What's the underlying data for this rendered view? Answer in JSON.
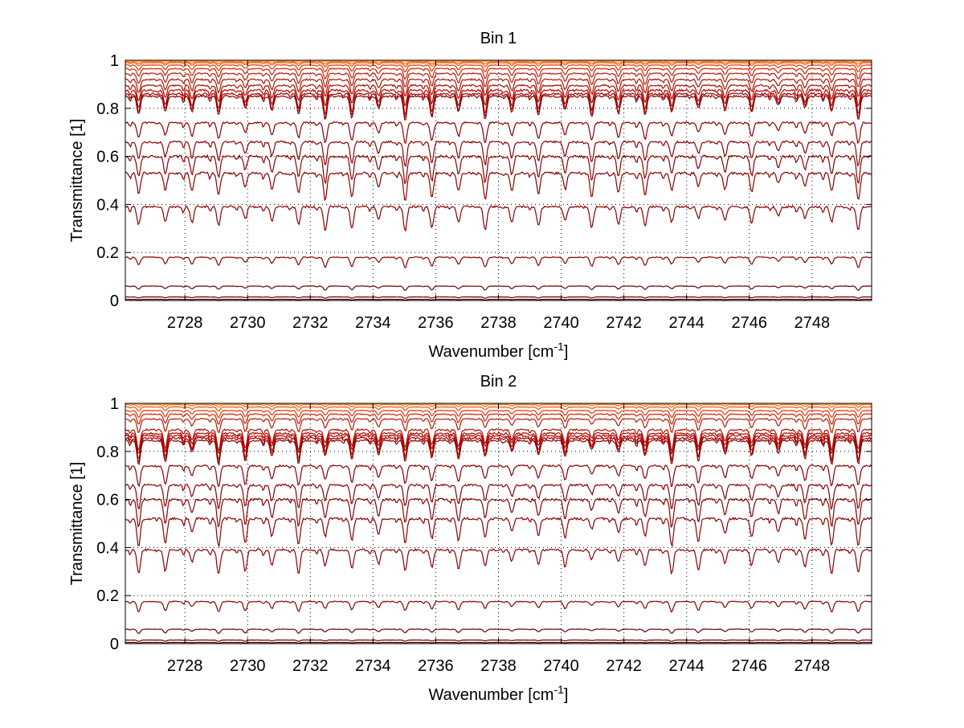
{
  "colors": {
    "background": "#ffffff",
    "grid": "#000000",
    "curve_dark": "#7a0000",
    "curve_mid": "#b01010",
    "curve_light": "#ff8c00"
  },
  "chart_data": [
    {
      "type": "line",
      "title": "Bin 1",
      "xlabel": "Wavenumber [cm",
      "xlabel_sup": "-1",
      "xlabel_close": "]",
      "ylabel": "Transmittance [1]",
      "xlim": [
        2726.1,
        2749.9
      ],
      "ylim": [
        0,
        1
      ],
      "xticks": [
        2728,
        2730,
        2732,
        2734,
        2736,
        2738,
        2740,
        2742,
        2744,
        2746,
        2748
      ],
      "yticks": [
        0,
        0.2,
        0.4,
        0.6,
        0.8,
        1
      ],
      "ytick_labels": [
        "0",
        "0.2",
        "0.4",
        "0.6",
        "0.8",
        "1"
      ],
      "grid": "dotted",
      "line_spacing_cm1": 0.85,
      "series": [
        {
          "base": 1.0,
          "depth": 0.004,
          "color": "#ff8c00"
        },
        {
          "base": 0.995,
          "depth": 0.008,
          "color": "#ff6a00"
        },
        {
          "base": 0.99,
          "depth": 0.012,
          "color": "#ff4a00"
        },
        {
          "base": 0.98,
          "depth": 0.02,
          "color": "#e83000"
        },
        {
          "base": 0.965,
          "depth": 0.03,
          "color": "#d02000"
        },
        {
          "base": 0.945,
          "depth": 0.04,
          "color": "#c01800"
        },
        {
          "base": 0.92,
          "depth": 0.05,
          "color": "#b01000"
        },
        {
          "base": 0.895,
          "depth": 0.06,
          "color": "#a80c00"
        },
        {
          "base": 0.875,
          "depth": 0.07,
          "color": "#c00000"
        },
        {
          "base": 0.86,
          "depth": 0.07,
          "color": "#a00000"
        },
        {
          "base": 0.85,
          "depth": 0.07,
          "color": "#900000"
        },
        {
          "base": 0.74,
          "depth": 0.06,
          "color": "#8b0000"
        },
        {
          "base": 0.66,
          "depth": 0.07,
          "color": "#8b0000"
        },
        {
          "base": 0.6,
          "depth": 0.08,
          "color": "#8b0000"
        },
        {
          "base": 0.53,
          "depth": 0.08,
          "color": "#8b0000"
        },
        {
          "base": 0.39,
          "depth": 0.07,
          "color": "#8b0000"
        },
        {
          "base": 0.18,
          "depth": 0.03,
          "color": "#8b0000"
        },
        {
          "base": 0.06,
          "depth": 0.012,
          "color": "#6b0000"
        },
        {
          "base": 0.015,
          "depth": 0.004,
          "color": "#6b0000"
        },
        {
          "base": 0.005,
          "depth": 0.002,
          "color": "#5a0000"
        }
      ]
    },
    {
      "type": "line",
      "title": "Bin 2",
      "xlabel": "Wavenumber [cm",
      "xlabel_sup": "-1",
      "xlabel_close": "]",
      "ylabel": "Transmittance [1]",
      "xlim": [
        2726.1,
        2749.9
      ],
      "ylim": [
        0,
        1
      ],
      "xticks": [
        2728,
        2730,
        2732,
        2734,
        2736,
        2738,
        2740,
        2742,
        2744,
        2746,
        2748
      ],
      "yticks": [
        0,
        0.2,
        0.4,
        0.6,
        0.8,
        1
      ],
      "ytick_labels": [
        "0",
        "0.2",
        "0.4",
        "0.6",
        "0.8",
        "1"
      ],
      "grid": "dotted",
      "line_spacing_cm1": 0.85,
      "series": [
        {
          "base": 1.0,
          "depth": 0.004,
          "color": "#ff8c00"
        },
        {
          "base": 0.995,
          "depth": 0.008,
          "color": "#ff6a00"
        },
        {
          "base": 0.985,
          "depth": 0.012,
          "color": "#ff4a00"
        },
        {
          "base": 0.97,
          "depth": 0.02,
          "color": "#e83000"
        },
        {
          "base": 0.955,
          "depth": 0.03,
          "color": "#d02000"
        },
        {
          "base": 0.935,
          "depth": 0.04,
          "color": "#c01800"
        },
        {
          "base": 0.89,
          "depth": 0.06,
          "color": "#b01000"
        },
        {
          "base": 0.875,
          "depth": 0.06,
          "color": "#a80c00"
        },
        {
          "base": 0.865,
          "depth": 0.07,
          "color": "#c00000"
        },
        {
          "base": 0.855,
          "depth": 0.07,
          "color": "#a00000"
        },
        {
          "base": 0.845,
          "depth": 0.07,
          "color": "#900000"
        },
        {
          "base": 0.74,
          "depth": 0.06,
          "color": "#8b0000"
        },
        {
          "base": 0.66,
          "depth": 0.07,
          "color": "#8b0000"
        },
        {
          "base": 0.6,
          "depth": 0.08,
          "color": "#8b0000"
        },
        {
          "base": 0.52,
          "depth": 0.08,
          "color": "#8b0000"
        },
        {
          "base": 0.39,
          "depth": 0.07,
          "color": "#8b0000"
        },
        {
          "base": 0.175,
          "depth": 0.03,
          "color": "#8b0000"
        },
        {
          "base": 0.06,
          "depth": 0.012,
          "color": "#6b0000"
        },
        {
          "base": 0.015,
          "depth": 0.004,
          "color": "#6b0000"
        },
        {
          "base": 0.005,
          "depth": 0.002,
          "color": "#5a0000"
        }
      ]
    }
  ]
}
